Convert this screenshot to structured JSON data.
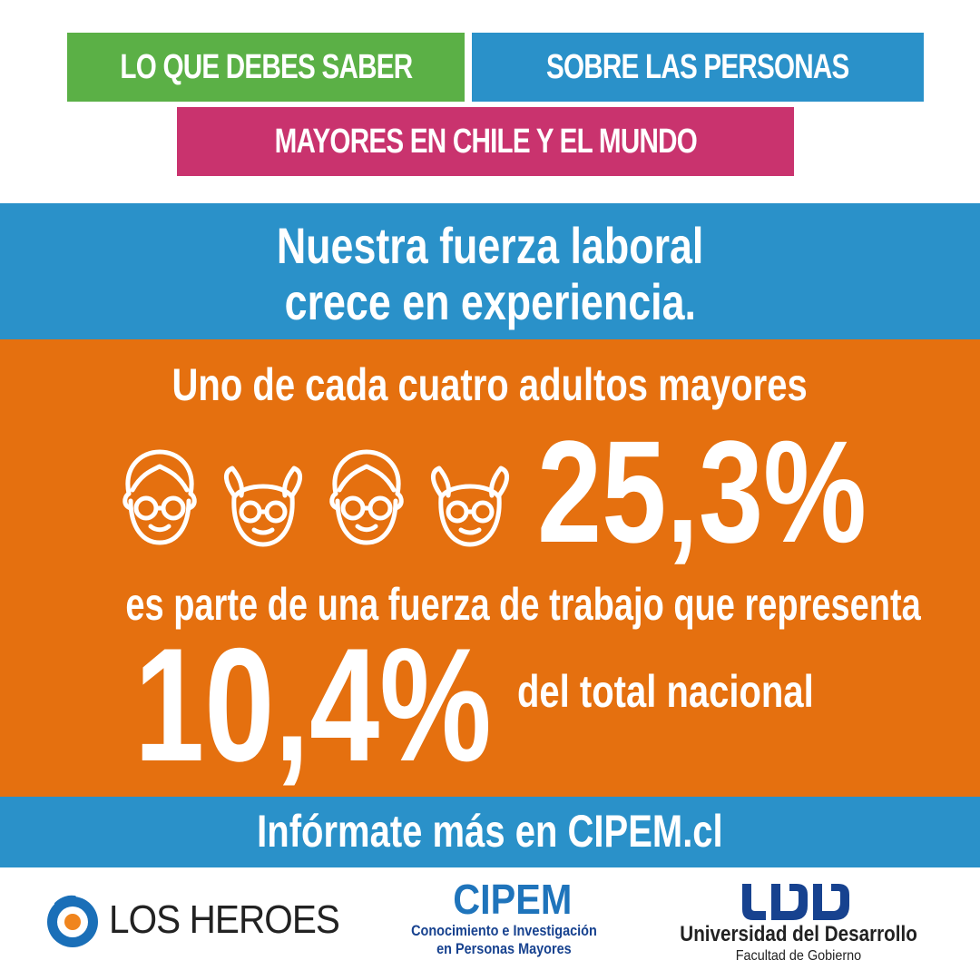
{
  "header": {
    "tag_green": "LO QUE DEBES SABER",
    "tag_blue": "SOBRE LAS PERSONAS",
    "tag_pink": "MAYORES EN CHILE Y EL MUNDO"
  },
  "headline": {
    "line1": "Nuestra fuerza laboral",
    "line2": "crece en experiencia."
  },
  "stats": {
    "intro": "Uno de cada cuatro adultos mayores",
    "percent_elderly": "25,3%",
    "middle": "es parte de una fuerza de trabajo que representa",
    "percent_total": "10,4%",
    "suffix": "del total nacional",
    "icons": [
      "elderly-woman-icon",
      "elderly-man-icon",
      "elderly-woman-icon",
      "elderly-man-icon"
    ]
  },
  "footer": {
    "cta": "Infórmate más en CIPEM.cl"
  },
  "logos": {
    "losheroes": "LOS HEROES",
    "cipem_title": "CIPEM",
    "cipem_sub1": "Conocimiento e Investigación",
    "cipem_sub2": "en Personas Mayores",
    "udd_name": "Universidad del Desarrollo",
    "udd_faculty": "Facultad de Gobierno"
  },
  "colors": {
    "green": "#5bb046",
    "blue": "#2a91c9",
    "pink": "#c9336e",
    "orange": "#e5700f",
    "navy": "#17428f"
  }
}
